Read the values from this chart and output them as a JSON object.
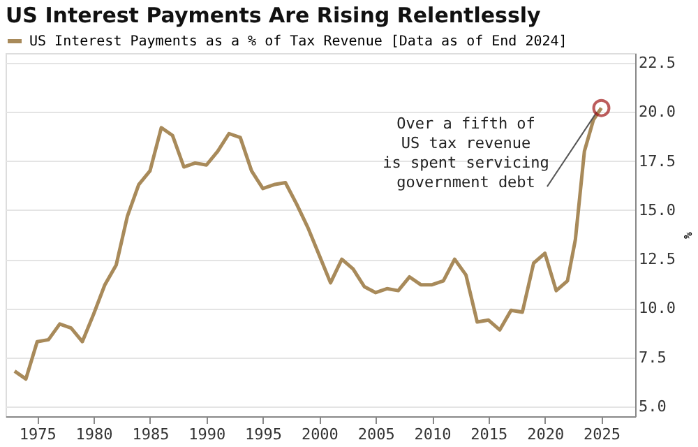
{
  "chart_data": {
    "type": "line",
    "title": "US Interest Payments Are Rising Relentlessly",
    "ylabel": "%",
    "x": [
      1973,
      1974,
      1975,
      1976,
      1977,
      1978,
      1979,
      1980,
      1981,
      1982,
      1983,
      1984,
      1985,
      1986,
      1987,
      1988,
      1989,
      1990,
      1991,
      1992,
      1993,
      1994,
      1995,
      1996,
      1997,
      1998,
      1999,
      2000,
      2001,
      2002,
      2003,
      2004,
      2005,
      2006,
      2007,
      2008,
      2009,
      2010,
      2011,
      2012,
      2013,
      2014,
      2015,
      2016,
      2017,
      2018,
      2019,
      2020,
      2021,
      2022,
      2022.7,
      2023.5,
      2024.3,
      2025
    ],
    "series": [
      {
        "name": "US Interest Payments as a % of Tax Revenue [Data as of End 2024]",
        "color": "#a88a5a",
        "values": [
          6.8,
          6.4,
          8.3,
          8.4,
          9.2,
          9.0,
          8.3,
          9.7,
          11.2,
          12.2,
          14.7,
          16.3,
          17.0,
          19.2,
          18.8,
          17.2,
          17.4,
          17.3,
          18.0,
          18.9,
          18.7,
          17.0,
          16.1,
          16.3,
          16.4,
          15.3,
          14.1,
          12.7,
          11.3,
          12.5,
          12.0,
          11.1,
          10.8,
          11.0,
          10.9,
          11.6,
          11.2,
          11.2,
          11.4,
          12.5,
          11.7,
          9.3,
          9.4,
          8.9,
          9.9,
          9.8,
          12.3,
          12.8,
          10.9,
          11.4,
          13.5,
          18.0,
          19.6,
          20.2
        ]
      }
    ],
    "annotations": [
      {
        "text": "Over a fifth of\nUS tax revenue\nis spent servicing\ngovernment debt",
        "x": 2025,
        "y": 20.2
      }
    ],
    "xlim": [
      1972.2,
      2028
    ],
    "xticks": [
      1975,
      1980,
      1985,
      1990,
      1995,
      2000,
      2005,
      2010,
      2015,
      2020,
      2025
    ],
    "ylim": [
      4.5,
      23
    ],
    "yticks": [
      {
        "value": 5,
        "label": "5.0"
      },
      7.5,
      {
        "value": 10,
        "label": "10.0"
      },
      12.5,
      {
        "value": 15,
        "label": "15.0"
      },
      17.5,
      {
        "value": 20,
        "label": "20.0"
      },
      22.5
    ],
    "grid": "y",
    "legend": "top left",
    "line_style": "solid",
    "marker": "none"
  }
}
